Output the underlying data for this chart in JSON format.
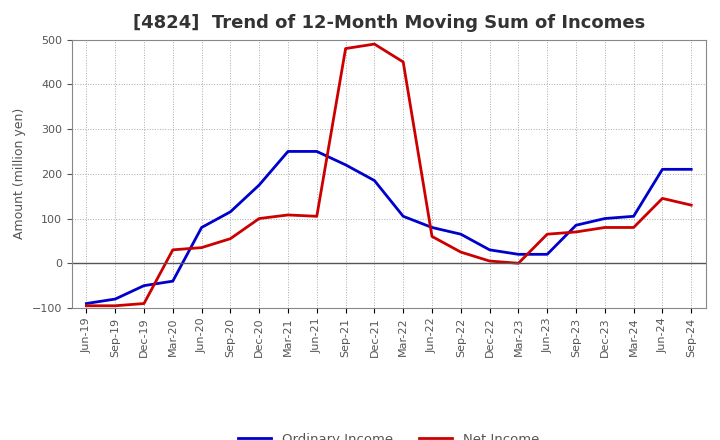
{
  "title": "[4824]  Trend of 12-Month Moving Sum of Incomes",
  "ylabel": "Amount (million yen)",
  "xlim_labels": [
    "Jun-19",
    "Sep-19",
    "Dec-19",
    "Mar-20",
    "Jun-20",
    "Sep-20",
    "Dec-20",
    "Mar-21",
    "Jun-21",
    "Sep-21",
    "Dec-21",
    "Mar-22",
    "Jun-22",
    "Sep-22",
    "Dec-22",
    "Mar-23",
    "Jun-23",
    "Sep-23",
    "Dec-23",
    "Mar-24",
    "Jun-24",
    "Sep-24"
  ],
  "ylim": [
    -100,
    500
  ],
  "yticks": [
    -100,
    0,
    100,
    200,
    300,
    400,
    500
  ],
  "ordinary_income": [
    -90,
    -80,
    -50,
    -40,
    80,
    115,
    175,
    250,
    250,
    220,
    185,
    105,
    80,
    65,
    30,
    20,
    20,
    85,
    100,
    105,
    210,
    210
  ],
  "net_income": [
    -95,
    -95,
    -90,
    30,
    35,
    55,
    100,
    108,
    105,
    480,
    490,
    450,
    60,
    25,
    5,
    0,
    65,
    70,
    80,
    80,
    145,
    130
  ],
  "ordinary_color": "#0000cc",
  "net_color": "#cc0000",
  "bg_color": "#ffffff",
  "plot_bg_color": "#ffffff",
  "line_width": 2.0,
  "legend_ordinary": "Ordinary Income",
  "legend_net": "Net Income",
  "title_fontsize": 13,
  "axis_label_fontsize": 9,
  "tick_fontsize": 8,
  "title_color": "#333333",
  "tick_color": "#555555",
  "grid_color": "#aaaaaa",
  "zero_line_color": "#555555"
}
